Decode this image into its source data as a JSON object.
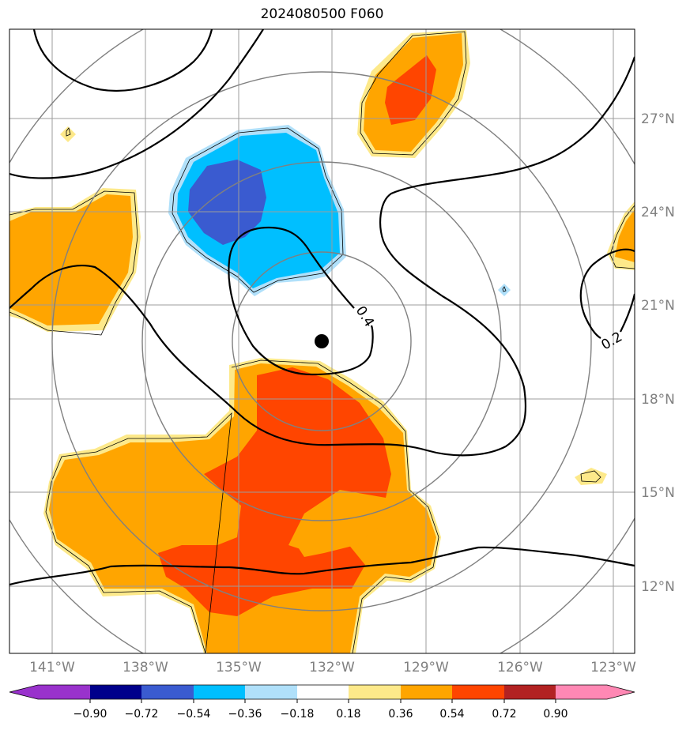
{
  "title": "2024080500 F060",
  "map": {
    "lat_ticks": [
      "27°N",
      "24°N",
      "21°N",
      "18°N",
      "15°N",
      "12°N"
    ],
    "lon_ticks": [
      "141°W",
      "138°W",
      "135°W",
      "132°W",
      "129°W",
      "126°W",
      "123°W"
    ],
    "contour_labels": [
      "0.4",
      "0.2"
    ],
    "center_marker": "storm-center",
    "colors": {
      "grid": "#999999",
      "range_rings": "#808080",
      "contour": "#000000"
    }
  },
  "colorbar": {
    "tick_labels": [
      "−0.90",
      "−0.72",
      "−0.54",
      "−0.36",
      "−0.18",
      "0.18",
      "0.36",
      "0.54",
      "0.72",
      "0.90"
    ],
    "colors": [
      "#9932cc",
      "#00008b",
      "#3a5bd0",
      "#00bfff",
      "#b0e0fa",
      "#ffffff",
      "#fde98a",
      "#ffa500",
      "#ff4500",
      "#b22222",
      "#ff88b4"
    ]
  }
}
